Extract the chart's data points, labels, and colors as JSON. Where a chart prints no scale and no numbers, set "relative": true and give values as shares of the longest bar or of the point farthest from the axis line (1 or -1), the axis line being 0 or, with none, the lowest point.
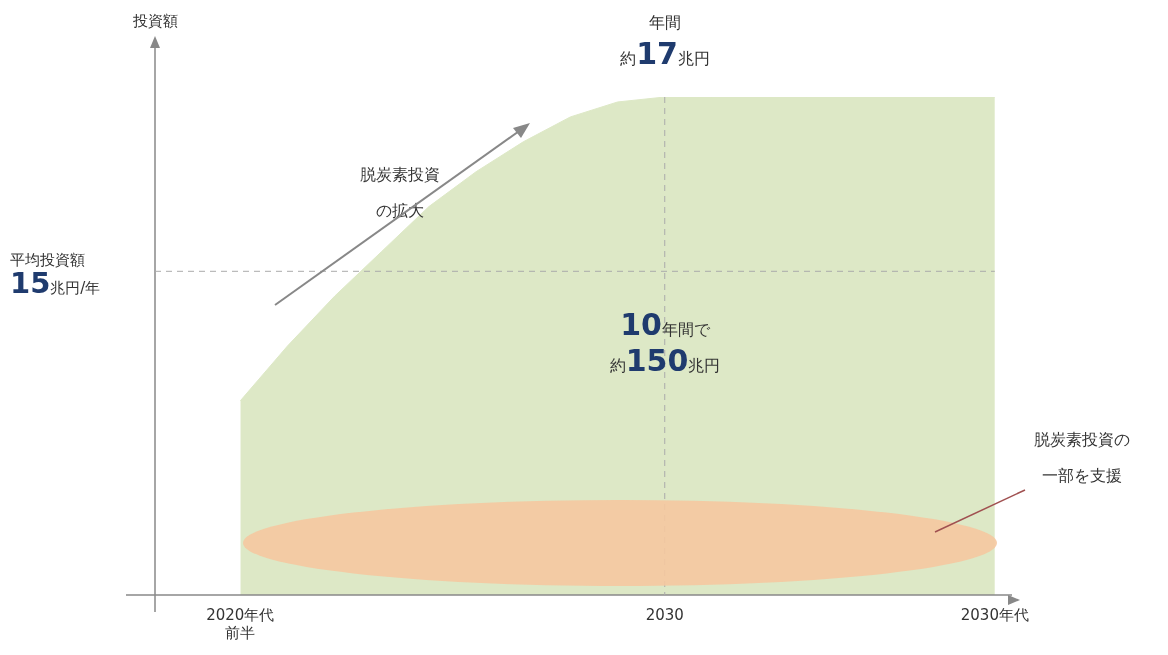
{
  "chart_data": {
    "type": "area",
    "relative": true,
    "ylabel": "投資額",
    "color": "#dde8c6",
    "categories": [
      null,
      null,
      "2020年代前半",
      null,
      null,
      null,
      null,
      null,
      null,
      null,
      null,
      "2030",
      null,
      null,
      null,
      null,
      null,
      null,
      "2030年代",
      null
    ],
    "values": [
      null,
      null,
      0.39,
      0.5,
      0.6,
      0.69,
      0.78,
      0.85,
      0.91,
      0.96,
      0.99,
      1,
      1,
      1,
      1,
      1,
      1,
      1,
      1,
      null
    ],
    "ref_lines": [
      {
        "axis": "y",
        "value": 0.65,
        "label": "平均投資額15兆円/年",
        "line_style": "dashed",
        "color": "#aaaaaa"
      },
      {
        "axis": "x",
        "value": "2030",
        "line_style": "dashed",
        "color": "#aaaaaa"
      }
    ],
    "annotations": [
      "年間約17兆円",
      "脱炭素投資の拡大",
      "10年間で約150兆円",
      "脱炭素投資の一部を支援"
    ],
    "grid": false,
    "legend": false
  }
}
